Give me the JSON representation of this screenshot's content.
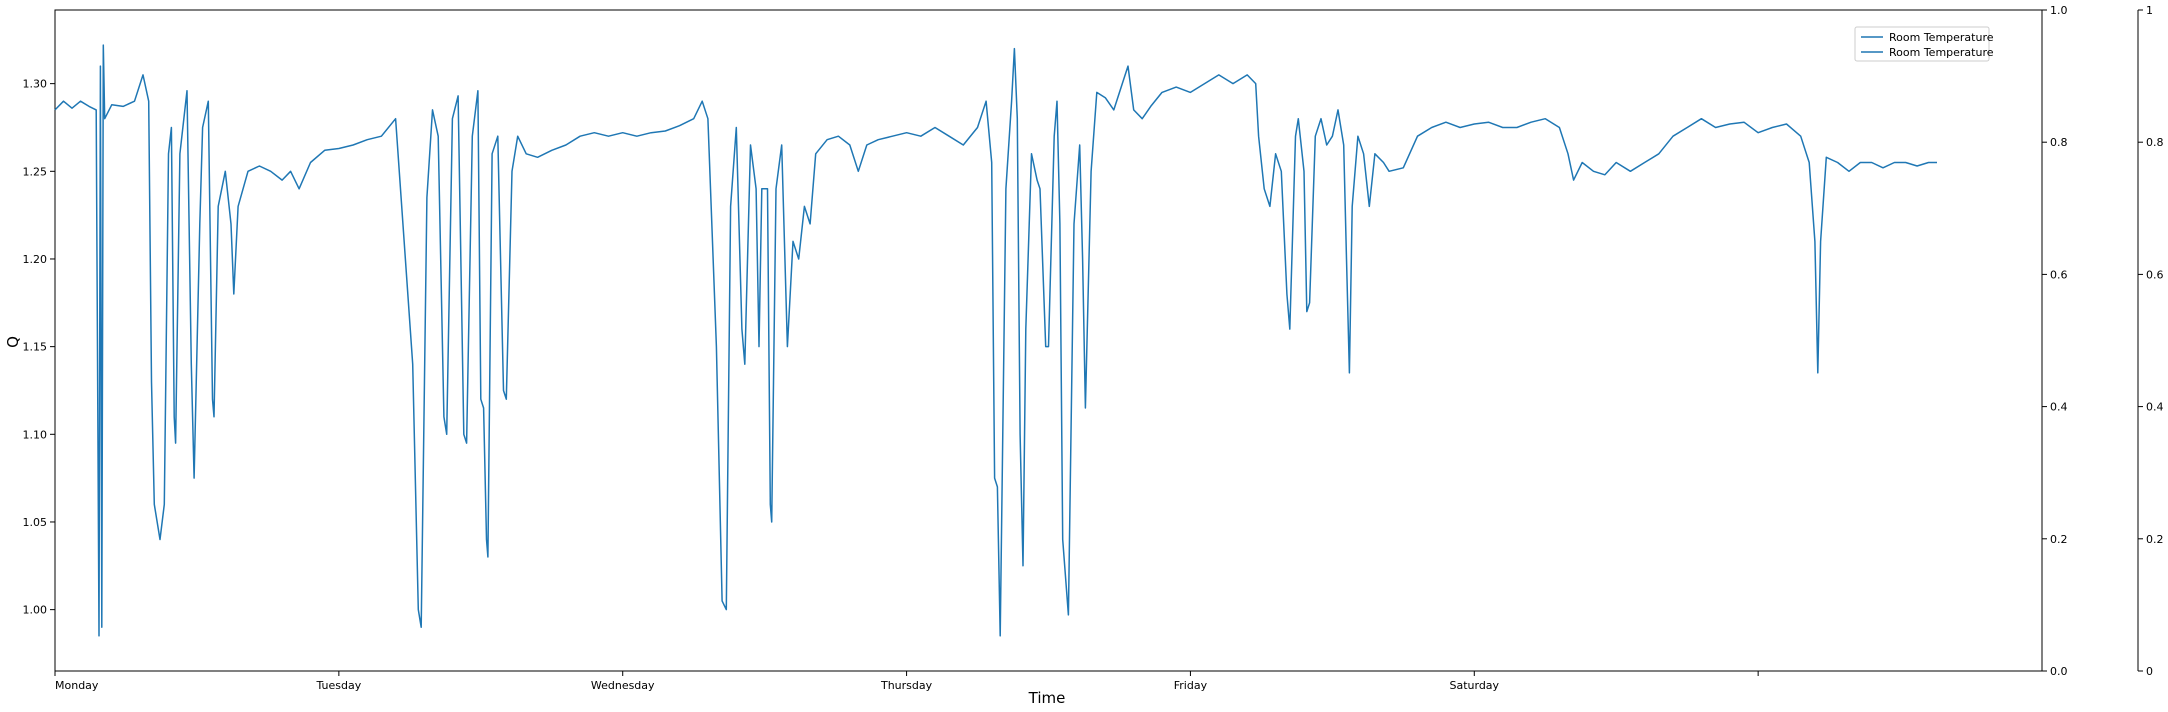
{
  "chart_data": {
    "type": "line",
    "title": "",
    "xlabel": "Time",
    "ylabel": "Q",
    "grid": false,
    "legend_position": "top-right",
    "legend": [
      "Room Temperature",
      "Room Temperature"
    ],
    "series_color": "#1f77b4",
    "x_tick_labels": [
      "Monday",
      "Tuesday",
      "Wednesday",
      "Thursday",
      "Friday",
      "Saturday",
      ""
    ],
    "x_tick_positions": [
      0,
      1,
      2,
      3,
      4,
      5,
      6
    ],
    "xlim": [
      0,
      7
    ],
    "ylim": [
      0.965,
      1.342
    ],
    "y_ticks": [
      1.0,
      1.05,
      1.1,
      1.15,
      1.2,
      1.25,
      1.3
    ],
    "y_tick_labels": [
      "1.00",
      "1.05",
      "1.10",
      "1.15",
      "1.20",
      "1.25",
      "1.30"
    ],
    "secondary_axis_1": {
      "ylim": [
        0,
        1
      ],
      "ticks": [
        "0.0",
        "0.2",
        "0.4",
        "0.6",
        "0.8",
        "1.0"
      ]
    },
    "secondary_axis_2": {
      "ylim": [
        0,
        1
      ],
      "ticks": [
        "0",
        "0.2",
        "0.4",
        "0.6",
        "0.8",
        "1"
      ]
    },
    "series": [
      {
        "name": "Room Temperature",
        "points": [
          [
            0.0,
            1.285
          ],
          [
            0.03,
            1.29
          ],
          [
            0.06,
            1.286
          ],
          [
            0.09,
            1.29
          ],
          [
            0.12,
            1.287
          ],
          [
            0.145,
            1.285
          ],
          [
            0.155,
            0.985
          ],
          [
            0.16,
            1.31
          ],
          [
            0.165,
            0.99
          ],
          [
            0.17,
            1.322
          ],
          [
            0.175,
            1.28
          ],
          [
            0.2,
            1.288
          ],
          [
            0.24,
            1.287
          ],
          [
            0.28,
            1.29
          ],
          [
            0.31,
            1.305
          ],
          [
            0.33,
            1.29
          ],
          [
            0.34,
            1.13
          ],
          [
            0.35,
            1.06
          ],
          [
            0.37,
            1.04
          ],
          [
            0.385,
            1.06
          ],
          [
            0.4,
            1.26
          ],
          [
            0.41,
            1.275
          ],
          [
            0.42,
            1.11
          ],
          [
            0.425,
            1.095
          ],
          [
            0.44,
            1.26
          ],
          [
            0.465,
            1.296
          ],
          [
            0.48,
            1.14
          ],
          [
            0.49,
            1.075
          ],
          [
            0.51,
            1.22
          ],
          [
            0.52,
            1.275
          ],
          [
            0.54,
            1.29
          ],
          [
            0.555,
            1.12
          ],
          [
            0.56,
            1.11
          ],
          [
            0.575,
            1.23
          ],
          [
            0.6,
            1.25
          ],
          [
            0.62,
            1.22
          ],
          [
            0.63,
            1.18
          ],
          [
            0.645,
            1.23
          ],
          [
            0.68,
            1.25
          ],
          [
            0.72,
            1.253
          ],
          [
            0.76,
            1.25
          ],
          [
            0.8,
            1.245
          ],
          [
            0.83,
            1.25
          ],
          [
            0.86,
            1.24
          ],
          [
            0.9,
            1.255
          ],
          [
            0.95,
            1.262
          ],
          [
            1.0,
            1.263
          ],
          [
            1.05,
            1.265
          ],
          [
            1.1,
            1.268
          ],
          [
            1.15,
            1.27
          ],
          [
            1.2,
            1.28
          ],
          [
            1.26,
            1.14
          ],
          [
            1.28,
            1.0
          ],
          [
            1.29,
            0.99
          ],
          [
            1.31,
            1.235
          ],
          [
            1.33,
            1.285
          ],
          [
            1.35,
            1.27
          ],
          [
            1.37,
            1.11
          ],
          [
            1.38,
            1.1
          ],
          [
            1.4,
            1.28
          ],
          [
            1.42,
            1.293
          ],
          [
            1.44,
            1.1
          ],
          [
            1.45,
            1.095
          ],
          [
            1.47,
            1.27
          ],
          [
            1.49,
            1.296
          ],
          [
            1.5,
            1.12
          ],
          [
            1.51,
            1.115
          ],
          [
            1.52,
            1.04
          ],
          [
            1.525,
            1.03
          ],
          [
            1.54,
            1.26
          ],
          [
            1.56,
            1.27
          ],
          [
            1.58,
            1.125
          ],
          [
            1.59,
            1.12
          ],
          [
            1.61,
            1.25
          ],
          [
            1.63,
            1.27
          ],
          [
            1.66,
            1.26
          ],
          [
            1.7,
            1.258
          ],
          [
            1.75,
            1.262
          ],
          [
            1.8,
            1.265
          ],
          [
            1.85,
            1.27
          ],
          [
            1.9,
            1.272
          ],
          [
            1.95,
            1.27
          ],
          [
            2.0,
            1.272
          ],
          [
            2.05,
            1.27
          ],
          [
            2.1,
            1.272
          ],
          [
            2.15,
            1.273
          ],
          [
            2.2,
            1.276
          ],
          [
            2.25,
            1.28
          ],
          [
            2.28,
            1.29
          ],
          [
            2.3,
            1.28
          ],
          [
            2.33,
            1.15
          ],
          [
            2.35,
            1.005
          ],
          [
            2.365,
            1.0
          ],
          [
            2.38,
            1.23
          ],
          [
            2.4,
            1.275
          ],
          [
            2.42,
            1.16
          ],
          [
            2.43,
            1.14
          ],
          [
            2.45,
            1.265
          ],
          [
            2.47,
            1.24
          ],
          [
            2.48,
            1.15
          ],
          [
            2.49,
            1.24
          ],
          [
            2.51,
            1.24
          ],
          [
            2.52,
            1.06
          ],
          [
            2.525,
            1.05
          ],
          [
            2.54,
            1.24
          ],
          [
            2.56,
            1.265
          ],
          [
            2.58,
            1.15
          ],
          [
            2.6,
            1.21
          ],
          [
            2.62,
            1.2
          ],
          [
            2.64,
            1.23
          ],
          [
            2.66,
            1.22
          ],
          [
            2.68,
            1.26
          ],
          [
            2.72,
            1.268
          ],
          [
            2.76,
            1.27
          ],
          [
            2.8,
            1.265
          ],
          [
            2.83,
            1.25
          ],
          [
            2.86,
            1.265
          ],
          [
            2.9,
            1.268
          ],
          [
            2.95,
            1.27
          ],
          [
            3.0,
            1.272
          ],
          [
            3.05,
            1.27
          ],
          [
            3.1,
            1.275
          ],
          [
            3.15,
            1.27
          ],
          [
            3.2,
            1.265
          ],
          [
            3.25,
            1.275
          ],
          [
            3.28,
            1.29
          ],
          [
            3.3,
            1.255
          ],
          [
            3.31,
            1.075
          ],
          [
            3.32,
            1.07
          ],
          [
            3.33,
            0.985
          ],
          [
            3.35,
            1.24
          ],
          [
            3.37,
            1.29
          ],
          [
            3.38,
            1.32
          ],
          [
            3.39,
            1.28
          ],
          [
            3.4,
            1.1
          ],
          [
            3.41,
            1.025
          ],
          [
            3.42,
            1.16
          ],
          [
            3.44,
            1.26
          ],
          [
            3.46,
            1.245
          ],
          [
            3.47,
            1.24
          ],
          [
            3.49,
            1.15
          ],
          [
            3.5,
            1.15
          ],
          [
            3.52,
            1.27
          ],
          [
            3.53,
            1.29
          ],
          [
            3.54,
            1.22
          ],
          [
            3.55,
            1.04
          ],
          [
            3.57,
            0.997
          ],
          [
            3.59,
            1.22
          ],
          [
            3.61,
            1.265
          ],
          [
            3.62,
            1.2
          ],
          [
            3.63,
            1.115
          ],
          [
            3.65,
            1.25
          ],
          [
            3.67,
            1.295
          ],
          [
            3.7,
            1.292
          ],
          [
            3.73,
            1.285
          ],
          [
            3.76,
            1.3
          ],
          [
            3.78,
            1.31
          ],
          [
            3.8,
            1.285
          ],
          [
            3.83,
            1.28
          ],
          [
            3.86,
            1.287
          ],
          [
            3.9,
            1.295
          ],
          [
            3.95,
            1.298
          ],
          [
            4.0,
            1.295
          ],
          [
            4.05,
            1.3
          ],
          [
            4.1,
            1.305
          ],
          [
            4.15,
            1.3
          ],
          [
            4.2,
            1.305
          ],
          [
            4.23,
            1.3
          ],
          [
            4.24,
            1.27
          ],
          [
            4.26,
            1.24
          ],
          [
            4.28,
            1.23
          ],
          [
            4.3,
            1.26
          ],
          [
            4.32,
            1.25
          ],
          [
            4.34,
            1.18
          ],
          [
            4.35,
            1.16
          ],
          [
            4.37,
            1.27
          ],
          [
            4.38,
            1.28
          ],
          [
            4.4,
            1.25
          ],
          [
            4.41,
            1.17
          ],
          [
            4.42,
            1.175
          ],
          [
            4.44,
            1.27
          ],
          [
            4.46,
            1.28
          ],
          [
            4.48,
            1.265
          ],
          [
            4.5,
            1.27
          ],
          [
            4.52,
            1.285
          ],
          [
            4.54,
            1.265
          ],
          [
            4.55,
            1.2
          ],
          [
            4.56,
            1.135
          ],
          [
            4.57,
            1.23
          ],
          [
            4.59,
            1.27
          ],
          [
            4.61,
            1.26
          ],
          [
            4.63,
            1.23
          ],
          [
            4.65,
            1.26
          ],
          [
            4.68,
            1.255
          ],
          [
            4.7,
            1.25
          ],
          [
            4.75,
            1.252
          ],
          [
            4.8,
            1.27
          ],
          [
            4.85,
            1.275
          ],
          [
            4.9,
            1.278
          ],
          [
            4.95,
            1.275
          ],
          [
            5.0,
            1.277
          ],
          [
            5.05,
            1.278
          ],
          [
            5.1,
            1.275
          ],
          [
            5.15,
            1.275
          ],
          [
            5.2,
            1.278
          ],
          [
            5.25,
            1.28
          ],
          [
            5.3,
            1.275
          ],
          [
            5.33,
            1.26
          ],
          [
            5.35,
            1.245
          ],
          [
            5.38,
            1.255
          ],
          [
            5.42,
            1.25
          ],
          [
            5.46,
            1.248
          ],
          [
            5.5,
            1.255
          ],
          [
            5.55,
            1.25
          ],
          [
            5.6,
            1.255
          ],
          [
            5.65,
            1.26
          ],
          [
            5.7,
            1.27
          ],
          [
            5.75,
            1.275
          ],
          [
            5.8,
            1.28
          ],
          [
            5.85,
            1.275
          ],
          [
            5.9,
            1.277
          ],
          [
            5.95,
            1.278
          ],
          [
            6.0,
            1.272
          ],
          [
            6.05,
            1.275
          ],
          [
            6.1,
            1.277
          ],
          [
            6.15,
            1.27
          ],
          [
            6.18,
            1.255
          ],
          [
            6.2,
            1.21
          ],
          [
            6.21,
            1.135
          ],
          [
            6.22,
            1.21
          ],
          [
            6.24,
            1.258
          ],
          [
            6.28,
            1.255
          ],
          [
            6.32,
            1.25
          ],
          [
            6.36,
            1.255
          ],
          [
            6.4,
            1.255
          ],
          [
            6.44,
            1.252
          ],
          [
            6.48,
            1.255
          ],
          [
            6.52,
            1.255
          ],
          [
            6.56,
            1.253
          ],
          [
            6.6,
            1.255
          ],
          [
            6.63,
            1.255
          ]
        ]
      }
    ]
  }
}
